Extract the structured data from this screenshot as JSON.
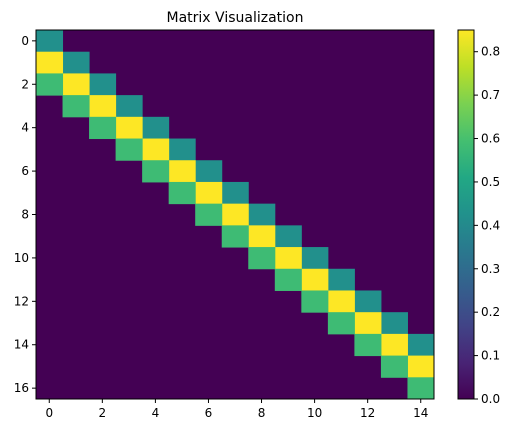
{
  "chart_data": {
    "type": "heatmap",
    "title": "Matrix Visualization",
    "xlabel": "",
    "ylabel": "",
    "rows": 17,
    "cols": 15,
    "colormap": "viridis",
    "vmin": 0.0,
    "vmax": 0.85,
    "diagonals": [
      {
        "offset": 0,
        "value": 0.42
      },
      {
        "offset": 1,
        "value": 0.85
      },
      {
        "offset": 2,
        "value": 0.58
      }
    ],
    "x_ticks": [
      0,
      2,
      4,
      6,
      8,
      10,
      12,
      14
    ],
    "y_ticks": [
      0,
      2,
      4,
      6,
      8,
      10,
      12,
      14,
      16
    ],
    "colorbar": {
      "ticks": [
        0.0,
        0.1,
        0.2,
        0.3,
        0.4,
        0.5,
        0.6,
        0.7,
        0.8
      ],
      "tick_labels": [
        "0.0",
        "0.1",
        "0.2",
        "0.3",
        "0.4",
        "0.5",
        "0.6",
        "0.7",
        "0.8"
      ]
    },
    "grid": false,
    "legend": "none"
  }
}
